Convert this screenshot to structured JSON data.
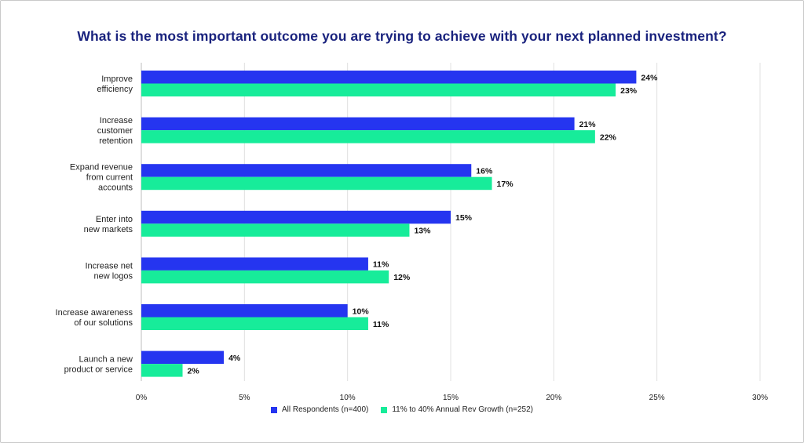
{
  "chart_data": {
    "type": "bar",
    "orientation": "horizontal",
    "title": "What is the most important outcome you are trying to achieve with your next planned investment?",
    "categories": [
      [
        "Improve",
        "efficiency"
      ],
      [
        "Increase",
        "customer",
        "retention"
      ],
      [
        "Expand revenue",
        "from current",
        "accounts"
      ],
      [
        "Enter into",
        "new markets"
      ],
      [
        "Increase net",
        "new logos"
      ],
      [
        "Increase awareness",
        "of our solutions"
      ],
      [
        "Launch a new",
        "product or service"
      ]
    ],
    "series": [
      {
        "name": "All Respondents (n=400)",
        "color": "#2535f0",
        "values": [
          24,
          21,
          16,
          15,
          11,
          10,
          4
        ]
      },
      {
        "name": "11% to 40% Annual Rev Growth (n=252)",
        "color": "#17ec9a",
        "values": [
          23,
          22,
          17,
          13,
          12,
          11,
          2
        ]
      }
    ],
    "value_suffix": "%",
    "xlim": [
      0,
      30
    ],
    "xticks": [
      0,
      5,
      10,
      15,
      20,
      25,
      30
    ],
    "xtick_labels": [
      "0%",
      "5%",
      "10%",
      "15%",
      "20%",
      "25%",
      "30%"
    ],
    "grid": "vertical",
    "legend_position": "bottom"
  }
}
